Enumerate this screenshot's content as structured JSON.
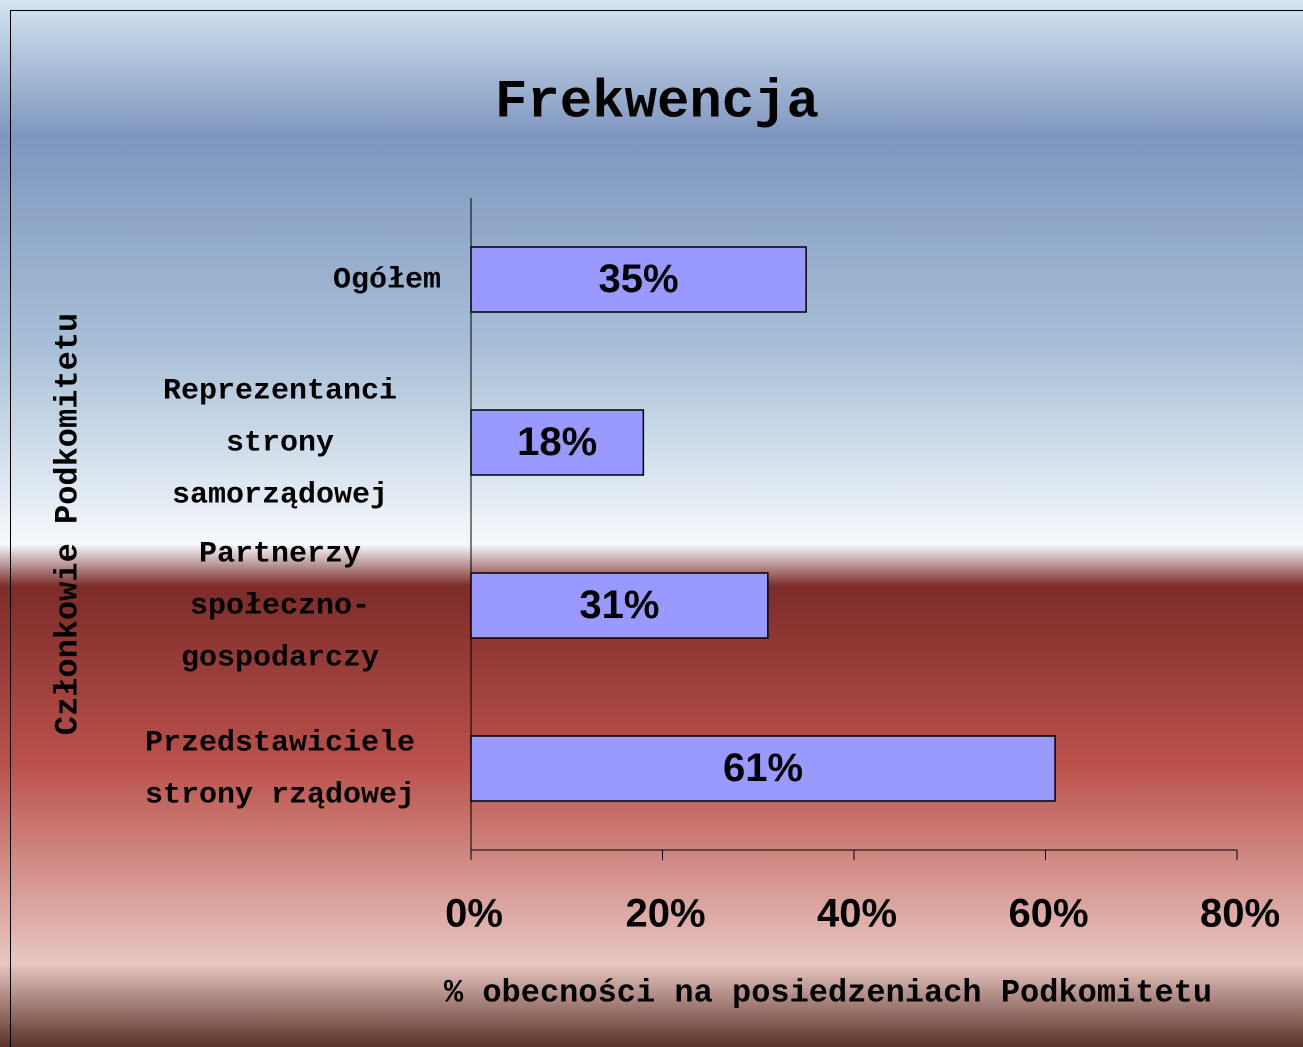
{
  "chart_data": {
    "type": "bar",
    "orientation": "horizontal",
    "title": "Frekwencja",
    "x_label": "% obecności na posiedzeniach Podkomitetu",
    "y_label": "Członkowie Podkomitetu",
    "categories": [
      "Ogółem",
      "Reprezentanci strony samorządowej",
      "Partnerzy społeczno-gospodarczy",
      "Przedstawiciele strony rządowej"
    ],
    "values": [
      35,
      18,
      31,
      61
    ],
    "value_labels": [
      "35%",
      "18%",
      "31%",
      "61%"
    ],
    "color": "#9999ff",
    "xlim": [
      0,
      80
    ],
    "xticks": [
      {
        "value": 0,
        "label": "0%"
      },
      {
        "value": 20,
        "label": "20%"
      },
      {
        "value": 40,
        "label": "40%"
      },
      {
        "value": 60,
        "label": "60%"
      },
      {
        "value": 80,
        "label": "80%"
      }
    ],
    "grid": false
  }
}
